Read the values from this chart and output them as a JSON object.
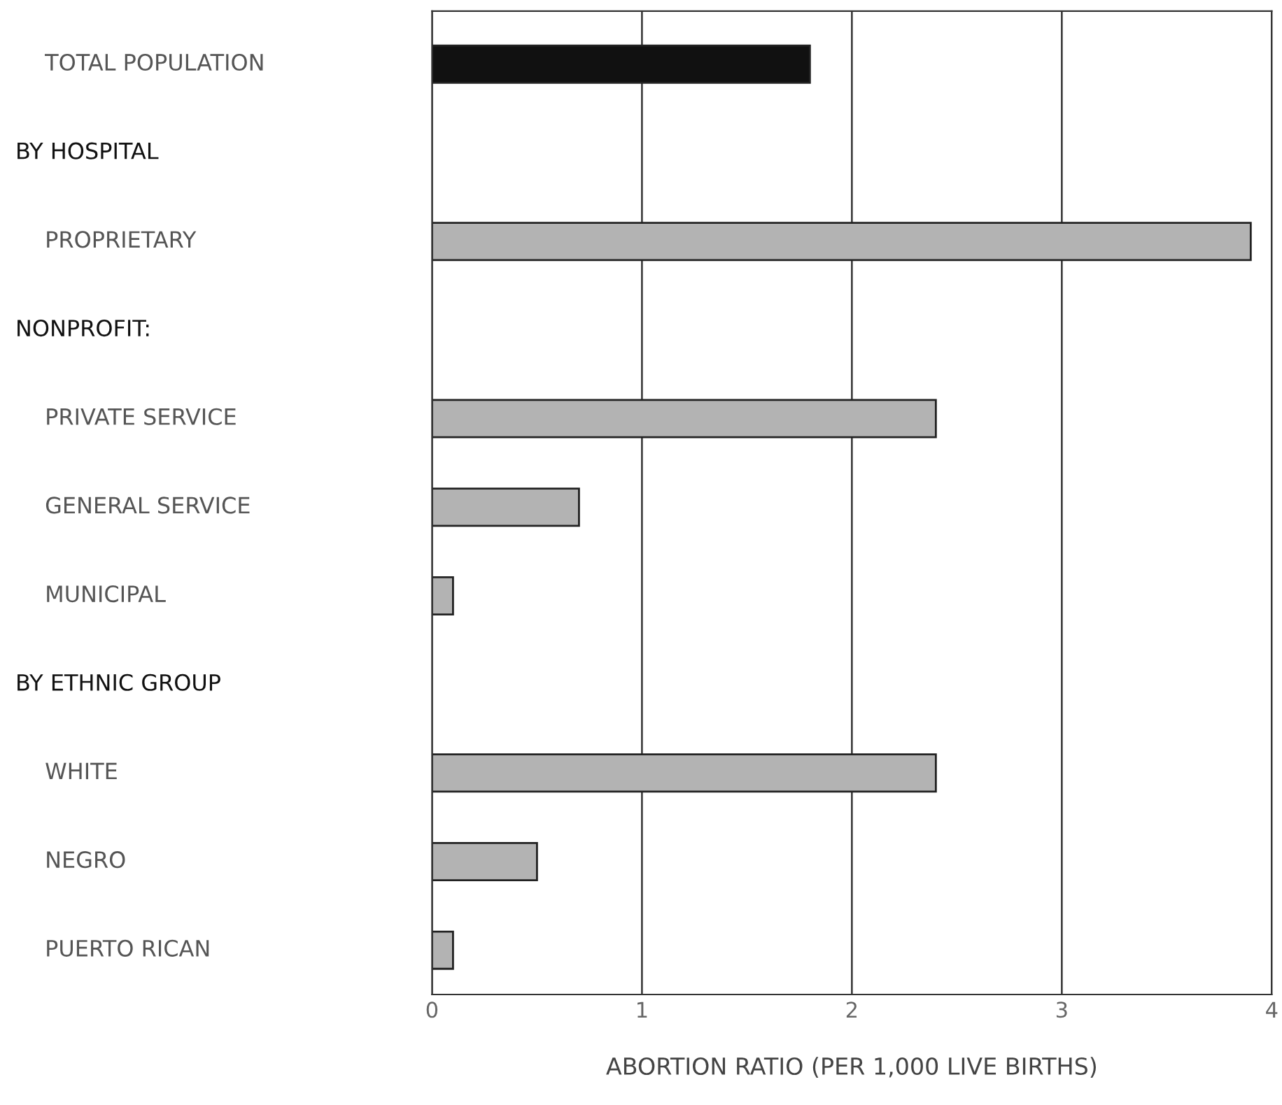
{
  "chart_data": {
    "type": "bar",
    "orientation": "horizontal",
    "xlabel": "ABORTION RATIO (PER 1,000 LIVE BIRTHS)",
    "categories": [
      "TOTAL POPULATION",
      null,
      "PROPRIETARY",
      null,
      "PRIVATE SERVICE",
      "GENERAL SERVICE",
      "MUNICIPAL",
      null,
      "WHITE",
      "NEGRO",
      "PUERTO RICAN"
    ],
    "annotations": [
      "BY HOSPITAL",
      "NONPROFIT:",
      "BY ETHNIC GROUP"
    ],
    "values": [
      1.8,
      null,
      3.9,
      null,
      2.4,
      0.7,
      0.1,
      null,
      2.4,
      0.5,
      0.1
    ],
    "colors": [
      "#111111",
      null,
      "#b3b3b3",
      null,
      "#b3b3b3",
      "#b3b3b3",
      "#b3b3b3",
      null,
      "#b3b3b3",
      "#b3b3b3",
      "#b3b3b3"
    ],
    "xlim": [
      0,
      4
    ],
    "xticks": [
      0,
      1,
      2,
      3,
      4
    ],
    "grid": "x"
  }
}
